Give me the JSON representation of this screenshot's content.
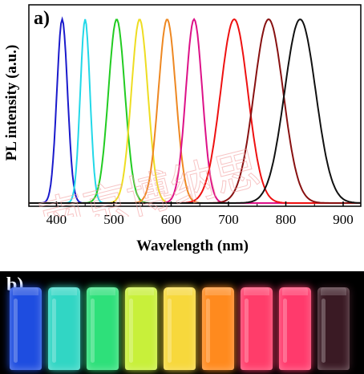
{
  "chart_data": {
    "type": "line",
    "panel_label": "a)",
    "xlabel": "Wavelength (nm)",
    "ylabel": "PL intensity (a.u.)",
    "xlim": [
      350,
      950
    ],
    "ylim": [
      0,
      1.0
    ],
    "xticks": [
      400,
      500,
      600,
      700,
      800,
      900
    ],
    "series": [
      {
        "peak": 410,
        "fwhm": 22,
        "color": "#1a1acc"
      },
      {
        "peak": 450,
        "fwhm": 20,
        "color": "#22d8e8"
      },
      {
        "peak": 505,
        "fwhm": 34,
        "color": "#22cc22"
      },
      {
        "peak": 545,
        "fwhm": 34,
        "color": "#eedd22"
      },
      {
        "peak": 593,
        "fwhm": 36,
        "color": "#ee8822"
      },
      {
        "peak": 640,
        "fwhm": 34,
        "color": "#dd1188"
      },
      {
        "peak": 710,
        "fwhm": 56,
        "color": "#ee1111"
      },
      {
        "peak": 770,
        "fwhm": 60,
        "color": "#881111"
      },
      {
        "peak": 825,
        "fwhm": 64,
        "color": "#111111"
      }
    ]
  },
  "photo": {
    "panel_label": "b)",
    "vial_colors": [
      "#1e4de0",
      "#31d6c4",
      "#2ee07a",
      "#c8f03a",
      "#f7d83c",
      "#ff8a1e",
      "#ff3d6a",
      "#ff3a6c",
      "#3a1a24"
    ]
  },
  "watermark": "南京博纳思"
}
